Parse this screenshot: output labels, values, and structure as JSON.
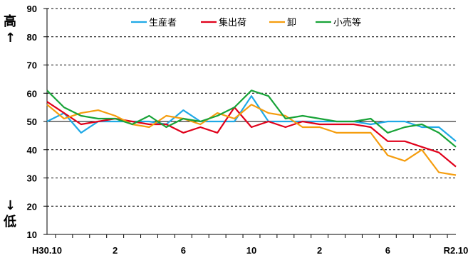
{
  "chart_data": {
    "type": "line",
    "title": "",
    "xlabel": "",
    "ylabel": "",
    "side_labels": {
      "top": "高",
      "top_arrow": "↑",
      "bottom_arrow": "↓",
      "bottom": "低"
    },
    "ylim": [
      10,
      90
    ],
    "yticks": [
      10,
      20,
      30,
      40,
      50,
      60,
      70,
      80,
      90
    ],
    "reference_line": 50,
    "grid": "dashed horizontal",
    "legend_position": "top-right",
    "x_tick_labels": [
      {
        "index": 0,
        "label": "H30.10"
      },
      {
        "index": 4,
        "label": "2"
      },
      {
        "index": 8,
        "label": "6"
      },
      {
        "index": 12,
        "label": "10"
      },
      {
        "index": 16,
        "label": "2"
      },
      {
        "index": 20,
        "label": "6"
      },
      {
        "index": 24,
        "label": "R2.10"
      }
    ],
    "series": [
      {
        "name": "生産者",
        "color": "#1fa9e6",
        "values": [
          50,
          53,
          46,
          50,
          50,
          50,
          50,
          49,
          54,
          50,
          50,
          50,
          59,
          50,
          50,
          50,
          50,
          50,
          50,
          49,
          50,
          50,
          48,
          48,
          43
        ]
      },
      {
        "name": "集出荷",
        "color": "#e0001a",
        "values": [
          57,
          53,
          49,
          50,
          51,
          50,
          49,
          49,
          46,
          48,
          46,
          55,
          48,
          50,
          48,
          50,
          49,
          49,
          49,
          48,
          43,
          43,
          41,
          39,
          34
        ]
      },
      {
        "name": "卸",
        "color": "#f59d0e",
        "values": [
          56,
          51,
          53,
          54,
          52,
          49,
          48,
          52,
          51,
          49,
          53,
          51,
          56,
          53,
          52,
          48,
          48,
          46,
          46,
          46,
          38,
          36,
          40,
          32,
          31
        ]
      },
      {
        "name": "小売等",
        "color": "#17a337",
        "values": [
          61,
          55,
          52,
          51,
          51,
          49,
          52,
          48,
          51,
          50,
          52,
          55,
          61,
          59,
          51,
          52,
          51,
          50,
          50,
          51,
          46,
          48,
          49,
          46,
          41
        ]
      }
    ]
  }
}
